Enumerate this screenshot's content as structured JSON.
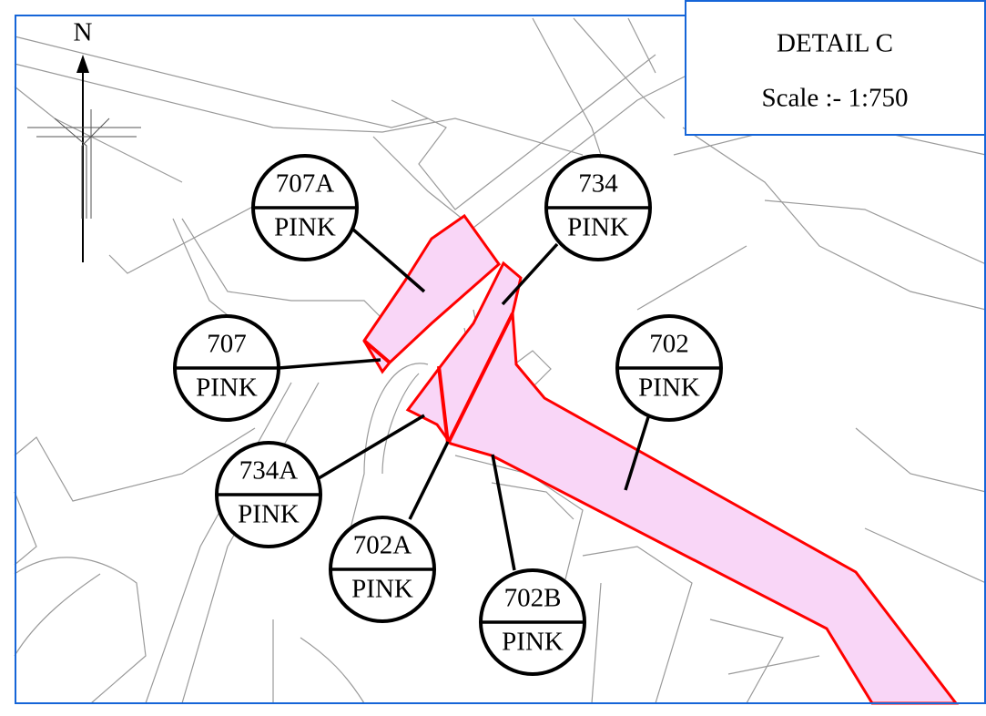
{
  "title": "DETAIL C",
  "scale": "Scale :- 1:750",
  "north": "N",
  "labels": [
    {
      "number": "707A",
      "color": "PINK"
    },
    {
      "number": "734",
      "color": "PINK"
    },
    {
      "number": "707",
      "color": "PINK"
    },
    {
      "number": "702",
      "color": "PINK"
    },
    {
      "number": "734A",
      "color": "PINK"
    },
    {
      "number": "702A",
      "color": "PINK"
    },
    {
      "number": "702B",
      "color": "PINK"
    }
  ]
}
